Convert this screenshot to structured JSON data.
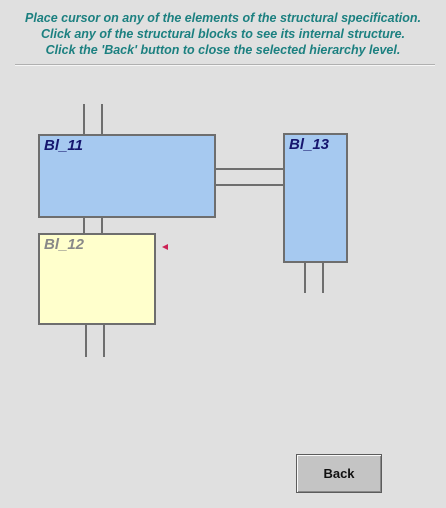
{
  "instructions": {
    "line1": "Place cursor on any of the elements of the structural specification.",
    "line2": "Click any of the structural blocks to see its internal structure.",
    "line3": "Click the 'Back' button to close the selected hierarchy level."
  },
  "blocks": {
    "bl11": {
      "label": "Bl_11"
    },
    "bl12": {
      "label": "Bl_12"
    },
    "bl13": {
      "label": "Bl_13"
    }
  },
  "buttons": {
    "back": "Back"
  },
  "colors": {
    "instruction_text": "#1c8080",
    "active_block_fill": "#a6c9f0",
    "selected_block_fill": "#ffffcc",
    "wire": "#6e6e6e",
    "marker": "#cc2255"
  }
}
